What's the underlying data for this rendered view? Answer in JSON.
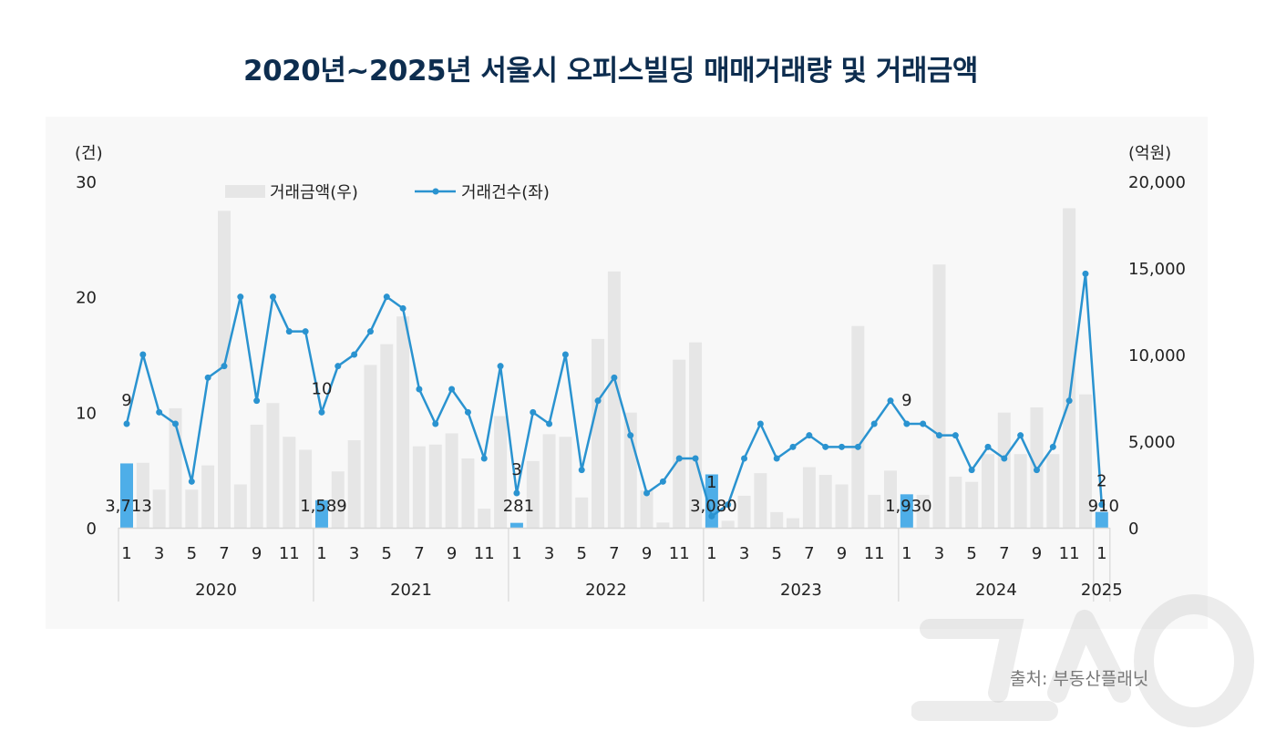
{
  "title": "2020년~2025년 서울시 오피스빌딩 매매거래량 및 거래금액",
  "source": "출처: 부동산플래닛",
  "watermark": "뉴스1",
  "colors": {
    "bar": "#e6e6e6",
    "bar_highlight": "#4eaee8",
    "line": "#2a93d0",
    "title": "#0d2d4f"
  },
  "chart_data": {
    "type": "bar+line",
    "title": "2020년~2025년 서울시 오피스빌딩 매매거래량 및 거래금액",
    "left_axis": {
      "unit": "(건)",
      "ylim": [
        0,
        30
      ],
      "ticks": [
        "0",
        "10",
        "20",
        "30"
      ],
      "tick_values": [
        0,
        10,
        20,
        30
      ]
    },
    "right_axis": {
      "unit": "(억원)",
      "ylim": [
        0,
        20000
      ],
      "ticks": [
        "0",
        "5,000",
        "10,000",
        "15,000",
        "20,000"
      ],
      "tick_values": [
        0,
        5000,
        10000,
        15000,
        20000
      ]
    },
    "legend": [
      {
        "name": "거래금액(우)",
        "kind": "bar"
      },
      {
        "name": "거래건수(좌)",
        "kind": "line"
      }
    ],
    "legend_position": "top-center",
    "years": [
      "2020",
      "2021",
      "2022",
      "2023",
      "2024",
      "2025"
    ],
    "month_tick_labels": [
      "1",
      "3",
      "5",
      "7",
      "9",
      "11"
    ],
    "series": [
      {
        "name": "거래금액(우)",
        "axis": "right",
        "values": [
          3713,
          3750,
          2200,
          6900,
          2200,
          3600,
          18300,
          2500,
          5950,
          7200,
          5250,
          4500,
          1589,
          3250,
          5050,
          9400,
          10600,
          12200,
          4700,
          4800,
          5450,
          4000,
          1100,
          6450,
          281,
          3850,
          5400,
          5250,
          1750,
          10900,
          14800,
          6650,
          2150,
          300,
          9700,
          10700,
          3080,
          400,
          1850,
          3150,
          900,
          550,
          3500,
          3050,
          2500,
          11650,
          1900,
          3300,
          1930,
          1900,
          15200,
          2950,
          2650,
          4250,
          6650,
          4250,
          6950,
          4250,
          18450,
          7700,
          910
        ]
      },
      {
        "name": "거래건수(좌)",
        "axis": "left",
        "values": [
          9,
          15,
          10,
          9,
          4,
          13,
          14,
          20,
          11,
          20,
          17,
          17,
          10,
          14,
          15,
          17,
          20,
          19,
          12,
          9,
          12,
          10,
          6,
          14,
          3,
          10,
          9,
          15,
          5,
          11,
          13,
          8,
          3,
          4,
          6,
          6,
          1,
          2,
          6,
          9,
          6,
          7,
          8,
          7,
          7,
          7,
          9,
          11,
          9,
          9,
          8,
          8,
          5,
          7,
          6,
          8,
          5,
          7,
          11,
          22,
          2
        ]
      }
    ],
    "annotations": [
      {
        "index": 0,
        "count_label": "9",
        "amount_label": "3,713"
      },
      {
        "index": 12,
        "count_label": "10",
        "amount_label": "1,589"
      },
      {
        "index": 24,
        "count_label": "3",
        "amount_label": "281"
      },
      {
        "index": 36,
        "count_label": "1",
        "amount_label": "3,080"
      },
      {
        "index": 48,
        "count_label": "9",
        "amount_label": "1,930"
      },
      {
        "index": 60,
        "count_label": "2",
        "amount_label": "910"
      }
    ]
  }
}
